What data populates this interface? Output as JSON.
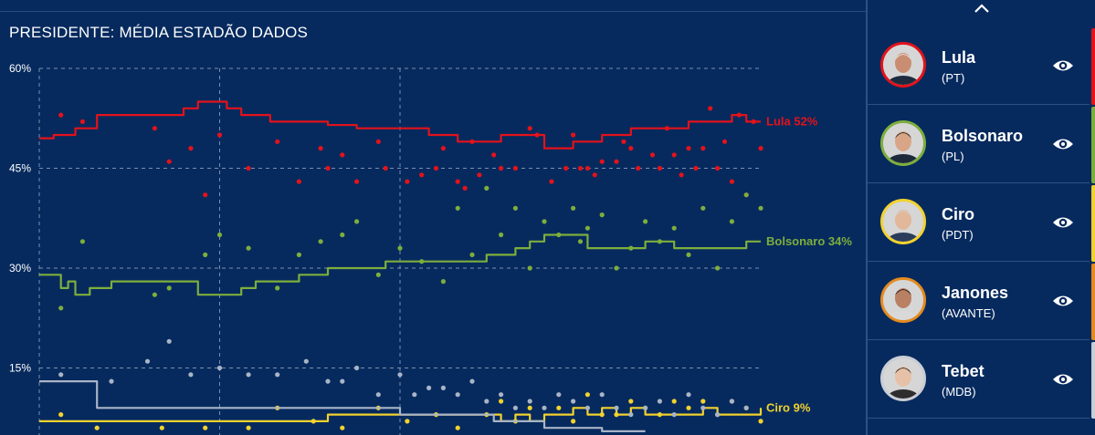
{
  "chart_title": "PRESIDENTE: MÉDIA ESTADÃO DADOS",
  "colors": {
    "background": "#062a5e",
    "lula": "#e3121b",
    "bolsonaro": "#7dae3c",
    "ciro": "#f2d22e",
    "janones": "#e58b1f",
    "tebet": "#a9b4c6",
    "grid": "#9aa7c2"
  },
  "chart_data": {
    "type": "line",
    "title": "PRESIDENTE: MÉDIA ESTADÃO DADOS",
    "ylim": [
      0,
      60
    ],
    "y_ticks": [
      "60%",
      "45%",
      "30%",
      "15%"
    ],
    "y_tick_values": [
      60,
      45,
      30,
      15
    ],
    "x_range": [
      0,
      100
    ],
    "vertical_gridlines_x": [
      0,
      25,
      50
    ],
    "grid": true,
    "series": [
      {
        "name": "Lula",
        "key": "lula",
        "end_label": "Lula 52%",
        "line_x": [
          0,
          2,
          3,
          5,
          6,
          8,
          10,
          12,
          14,
          16,
          18,
          20,
          22,
          24,
          26,
          28,
          30,
          32,
          34,
          36,
          38,
          40,
          42,
          44,
          46,
          48,
          50,
          52,
          54,
          56,
          58,
          60,
          62,
          64,
          66,
          68,
          70,
          72,
          74,
          76,
          78,
          80,
          82,
          84,
          86,
          88,
          90,
          92,
          94,
          96,
          98,
          100
        ],
        "line_y": [
          49.5,
          50,
          50,
          51,
          51,
          53,
          53,
          53,
          53,
          53,
          53,
          54,
          55,
          55,
          54,
          53,
          53,
          52,
          52,
          52,
          52,
          51.5,
          51.5,
          51,
          51,
          51,
          51,
          51,
          50,
          50,
          49,
          49,
          49,
          50,
          50,
          50,
          48,
          48,
          49,
          49,
          50,
          50,
          51,
          51,
          51,
          51,
          52,
          52,
          52,
          53,
          52,
          52
        ],
        "poll_x": [
          3,
          6,
          16,
          18,
          21,
          23,
          25,
          29,
          33,
          36,
          39,
          40,
          42,
          44,
          47,
          48,
          51,
          53,
          55,
          56,
          58,
          59,
          60,
          61,
          63,
          64,
          66,
          68,
          69,
          71,
          73,
          74,
          75,
          76,
          77,
          78,
          80,
          81,
          82,
          83,
          85,
          86,
          87,
          88,
          89,
          90,
          91,
          92,
          93,
          94,
          95,
          96,
          97,
          98,
          99,
          100
        ],
        "poll_y": [
          53,
          52,
          51,
          46,
          48,
          41,
          50,
          45,
          49,
          43,
          48,
          45,
          47,
          43,
          49,
          45,
          43,
          44,
          45,
          48,
          43,
          42,
          49,
          44,
          47,
          45,
          45,
          51,
          50,
          43,
          45,
          50,
          45,
          45,
          44,
          46,
          46,
          49,
          48,
          45,
          47,
          45,
          51,
          47,
          44,
          48,
          45,
          48,
          54,
          45,
          49,
          43,
          53,
          41,
          52,
          48
        ]
      },
      {
        "name": "Bolsonaro",
        "key": "bolsonaro",
        "end_label": "Bolsonaro 34%",
        "line_x": [
          0,
          2,
          3,
          4,
          5,
          7,
          8,
          10,
          12,
          14,
          16,
          18,
          20,
          22,
          24,
          26,
          28,
          30,
          32,
          34,
          36,
          38,
          40,
          42,
          44,
          46,
          48,
          50,
          52,
          54,
          56,
          58,
          60,
          62,
          64,
          66,
          68,
          70,
          72,
          74,
          76,
          78,
          80,
          82,
          84,
          86,
          88,
          90,
          92,
          94,
          96,
          98,
          100
        ],
        "line_y": [
          29,
          29,
          27,
          28,
          26,
          27,
          27,
          28,
          28,
          28,
          28,
          28,
          28,
          26,
          26,
          26,
          27,
          28,
          28,
          28,
          29,
          29,
          30,
          30,
          30,
          30,
          31,
          31,
          31,
          31,
          31,
          31,
          31,
          32,
          32,
          33,
          34,
          35,
          35,
          35,
          33,
          33,
          33,
          33,
          34,
          34,
          33,
          33,
          33,
          33,
          33,
          34,
          34
        ],
        "poll_x": [
          3,
          6,
          16,
          18,
          23,
          25,
          29,
          33,
          36,
          39,
          42,
          44,
          47,
          50,
          53,
          56,
          58,
          60,
          62,
          64,
          66,
          68,
          70,
          72,
          74,
          75,
          76,
          78,
          80,
          82,
          84,
          86,
          88,
          90,
          92,
          94,
          96,
          98,
          100
        ],
        "poll_y": [
          24,
          34,
          26,
          27,
          32,
          35,
          33,
          27,
          32,
          34,
          35,
          37,
          29,
          33,
          31,
          28,
          39,
          32,
          42,
          35,
          39,
          30,
          37,
          35,
          39,
          34,
          36,
          38,
          30,
          33,
          37,
          34,
          36,
          32,
          39,
          30,
          37,
          41,
          39
        ]
      },
      {
        "name": "Ciro",
        "key": "ciro",
        "end_label": "Ciro 9%",
        "line_x": [
          0,
          10,
          20,
          30,
          40,
          50,
          60,
          64,
          66,
          68,
          70,
          72,
          74,
          76,
          78,
          80,
          82,
          84,
          86,
          88,
          90,
          92,
          94,
          96,
          98,
          100
        ],
        "line_y": [
          7,
          7,
          7,
          7,
          8,
          8,
          8,
          7,
          8,
          7,
          8,
          8,
          9,
          8,
          9,
          8,
          9,
          8,
          8,
          8,
          8,
          9,
          8,
          8,
          8,
          9
        ],
        "poll_x": [
          3,
          8,
          17,
          23,
          29,
          33,
          38,
          42,
          47,
          51,
          55,
          58,
          62,
          64,
          66,
          68,
          72,
          74,
          76,
          78,
          80,
          82,
          84,
          86,
          88,
          90,
          92,
          94,
          96,
          98,
          100
        ],
        "poll_y": [
          8,
          6,
          6,
          6,
          6,
          9,
          7,
          6,
          9,
          7,
          8,
          6,
          8,
          10,
          7,
          9,
          9,
          7,
          11,
          8,
          8,
          10,
          9,
          8,
          10,
          9,
          10,
          8,
          10,
          9,
          7
        ]
      },
      {
        "name": "Tebet",
        "key": "tebet",
        "end_label": "",
        "line_x": [
          0,
          1,
          3,
          5,
          6,
          8,
          10,
          15,
          20,
          25,
          30,
          35,
          40,
          45,
          48,
          50,
          55,
          60,
          63,
          65,
          66,
          68,
          70,
          72,
          74,
          76,
          78,
          80,
          82,
          84
        ],
        "line_y": [
          13,
          13,
          13,
          13,
          13,
          9,
          9,
          9,
          9,
          9,
          9,
          9,
          9,
          9,
          9,
          8,
          8,
          8,
          7,
          7,
          7,
          7,
          6,
          6,
          6,
          6,
          5.5,
          5.5,
          5.5,
          5.5
        ],
        "poll_x": [
          3,
          10,
          15,
          18,
          21,
          25,
          29,
          33,
          37,
          40,
          42,
          44,
          47,
          50,
          52,
          54,
          56,
          58,
          60,
          62,
          64,
          66,
          68,
          70,
          72,
          74,
          76,
          78,
          80,
          82,
          84,
          86,
          88,
          90,
          92,
          94,
          96,
          98
        ],
        "poll_y": [
          14,
          13,
          16,
          19,
          14,
          15,
          14,
          14,
          16,
          13,
          13,
          15,
          11,
          14,
          11,
          12,
          12,
          11,
          13,
          10,
          11,
          9,
          10,
          9,
          11,
          10,
          9,
          11,
          9,
          8,
          9,
          10,
          8,
          11,
          9,
          8,
          10,
          9
        ]
      }
    ]
  },
  "sidebar": {
    "candidates": [
      {
        "name": "Lula",
        "party": "(PT)",
        "color": "#e3121b",
        "icon": "eye-icon"
      },
      {
        "name": "Bolsonaro",
        "party": "(PL)",
        "color": "#7dae3c",
        "icon": "eye-icon"
      },
      {
        "name": "Ciro",
        "party": "(PDT)",
        "color": "#f2d22e",
        "icon": "eye-icon"
      },
      {
        "name": "Janones",
        "party": "(AVANTE)",
        "color": "#e58b1f",
        "icon": "eye-icon"
      },
      {
        "name": "Tebet",
        "party": "(MDB)",
        "color": "#c9cdd6",
        "icon": "eye-icon"
      }
    ]
  }
}
